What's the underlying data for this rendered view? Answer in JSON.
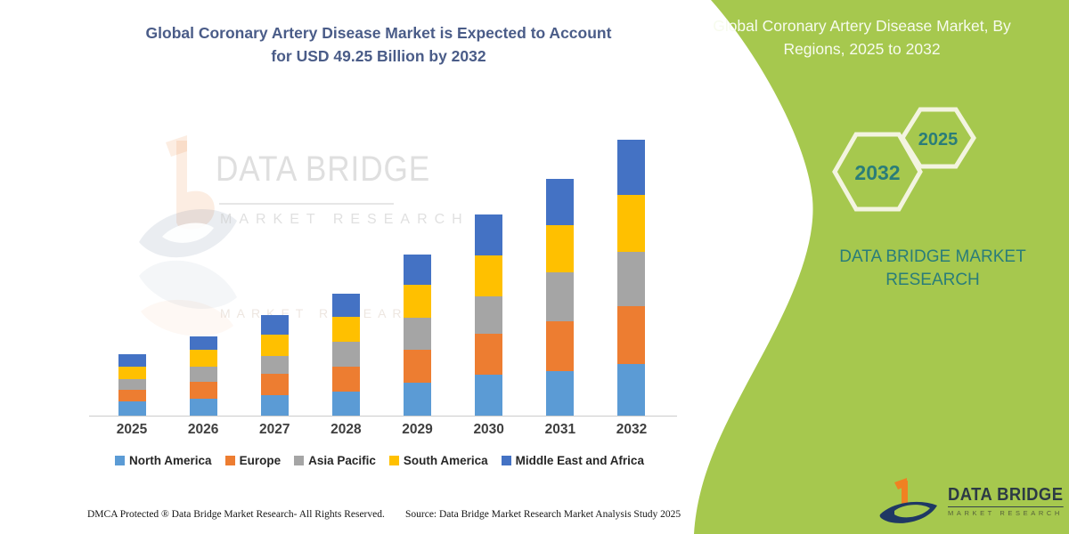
{
  "left_panel": {
    "title_line1": "Global Coronary Artery Disease Market is Expected to Account",
    "title_line2": "for USD 49.25 Billion by 2032",
    "watermark_brand": "DATA BRIDGE",
    "watermark_sub": "MARKET RESEARCH",
    "footer_left": "DMCA Protected ® Data Bridge Market Research-  All Rights Reserved.",
    "footer_source": "Source: Data Bridge Market Research  Market Analysis Study 2025"
  },
  "right_panel": {
    "title": "Global Coronary Artery Disease Market, By Regions, 2025 to 2032",
    "hexagon_large_label": "2032",
    "hexagon_small_label": "2025",
    "brand_caps": "DATA BRIDGE MARKET RESEARCH",
    "logo_name": "DATA BRIDGE",
    "logo_sub": "MARKET RESEARCH",
    "panel_color": "#a6c84e",
    "accent_teal": "#2a7d79",
    "hex_outline_color": "#f3f4e0"
  },
  "chart_data": {
    "type": "bar",
    "stacked": true,
    "title": "Global Coronary Artery Disease Market, By Regions, 2025 to 2032",
    "unit": "USD Billion",
    "categories": [
      "2025",
      "2026",
      "2027",
      "2028",
      "2029",
      "2030",
      "2031",
      "2032"
    ],
    "series": [
      {
        "name": "North America",
        "color": "#5B9BD5",
        "values": [
          2.5,
          3.0,
          3.7,
          4.3,
          5.9,
          7.3,
          8.0,
          9.25
        ]
      },
      {
        "name": "Europe",
        "color": "#ED7D31",
        "values": [
          2.1,
          3.0,
          3.8,
          4.5,
          5.9,
          7.3,
          8.8,
          10.3
        ]
      },
      {
        "name": "Asia Pacific",
        "color": "#A5A5A5",
        "values": [
          1.9,
          2.7,
          3.2,
          4.3,
          5.7,
          6.7,
          8.8,
          9.6
        ]
      },
      {
        "name": "South America",
        "color": "#FFC000",
        "values": [
          2.2,
          3.0,
          3.7,
          4.5,
          5.9,
          7.2,
          8.4,
          10.2
        ]
      },
      {
        "name": "Middle East and Africa",
        "color": "#4472C4",
        "values": [
          2.3,
          2.5,
          3.5,
          4.1,
          5.3,
          7.3,
          8.3,
          9.9
        ]
      }
    ],
    "totals_estimated": [
      11.0,
      14.2,
      17.9,
      21.7,
      28.7,
      35.8,
      42.3,
      49.25
    ],
    "highlight_value": "USD 49.25 Billion by 2032",
    "ylim": [
      0,
      50
    ],
    "y_axis_visible": false,
    "grid": false,
    "legend_position": "bottom"
  }
}
